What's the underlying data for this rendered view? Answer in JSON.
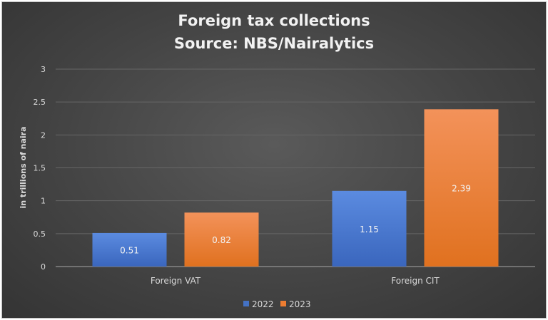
{
  "chart_data": {
    "type": "bar",
    "title": "Foreign tax collections",
    "subtitle": "Source: NBS/Nairalytics",
    "xlabel": "",
    "ylabel": "in trillions of naira",
    "categories": [
      "Foreign VAT",
      "Foreign CIT"
    ],
    "series": [
      {
        "name": "2022",
        "values": [
          0.51,
          1.15
        ],
        "color": "#4472c4"
      },
      {
        "name": "2023",
        "values": [
          0.82,
          2.39
        ],
        "color": "#ed7d31"
      }
    ],
    "ylim": [
      0,
      3
    ],
    "yticks": [
      "0",
      "0.5",
      "1",
      "1.5",
      "2",
      "2.5",
      "3"
    ],
    "data_labels": true,
    "grid": true,
    "legend_position": "bottom"
  }
}
